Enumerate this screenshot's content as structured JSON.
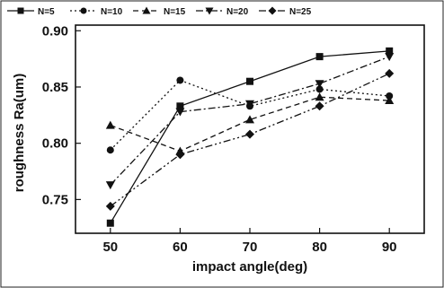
{
  "chart_data": {
    "type": "line",
    "xlabel": "impact angle(deg)",
    "ylabel": "roughness Ra(um)",
    "x": [
      50,
      60,
      70,
      80,
      90
    ],
    "xticks": [
      "50",
      "60",
      "70",
      "80",
      "90"
    ],
    "yticks": [
      "0.75",
      "0.80",
      "0.85",
      "0.90"
    ],
    "xlim": [
      45,
      95
    ],
    "ylim": [
      0.72,
      0.905
    ],
    "grid": false,
    "legend_position": "top",
    "series": [
      {
        "name": "N=5",
        "marker": "square",
        "dash": "solid",
        "values": [
          0.729,
          0.833,
          0.855,
          0.877,
          0.882
        ]
      },
      {
        "name": "N=10",
        "marker": "circle",
        "dash": "dot",
        "values": [
          0.794,
          0.856,
          0.833,
          0.848,
          0.842
        ]
      },
      {
        "name": "N=15",
        "marker": "triangle-up",
        "dash": "dash",
        "values": [
          0.816,
          0.793,
          0.821,
          0.841,
          0.838
        ]
      },
      {
        "name": "N=20",
        "marker": "triangle-down",
        "dash": "dashdot",
        "values": [
          0.763,
          0.828,
          0.835,
          0.853,
          0.877
        ]
      },
      {
        "name": "N=25",
        "marker": "diamond",
        "dash": "dashdotdot",
        "values": [
          0.744,
          0.79,
          0.808,
          0.833,
          0.862
        ]
      }
    ]
  }
}
